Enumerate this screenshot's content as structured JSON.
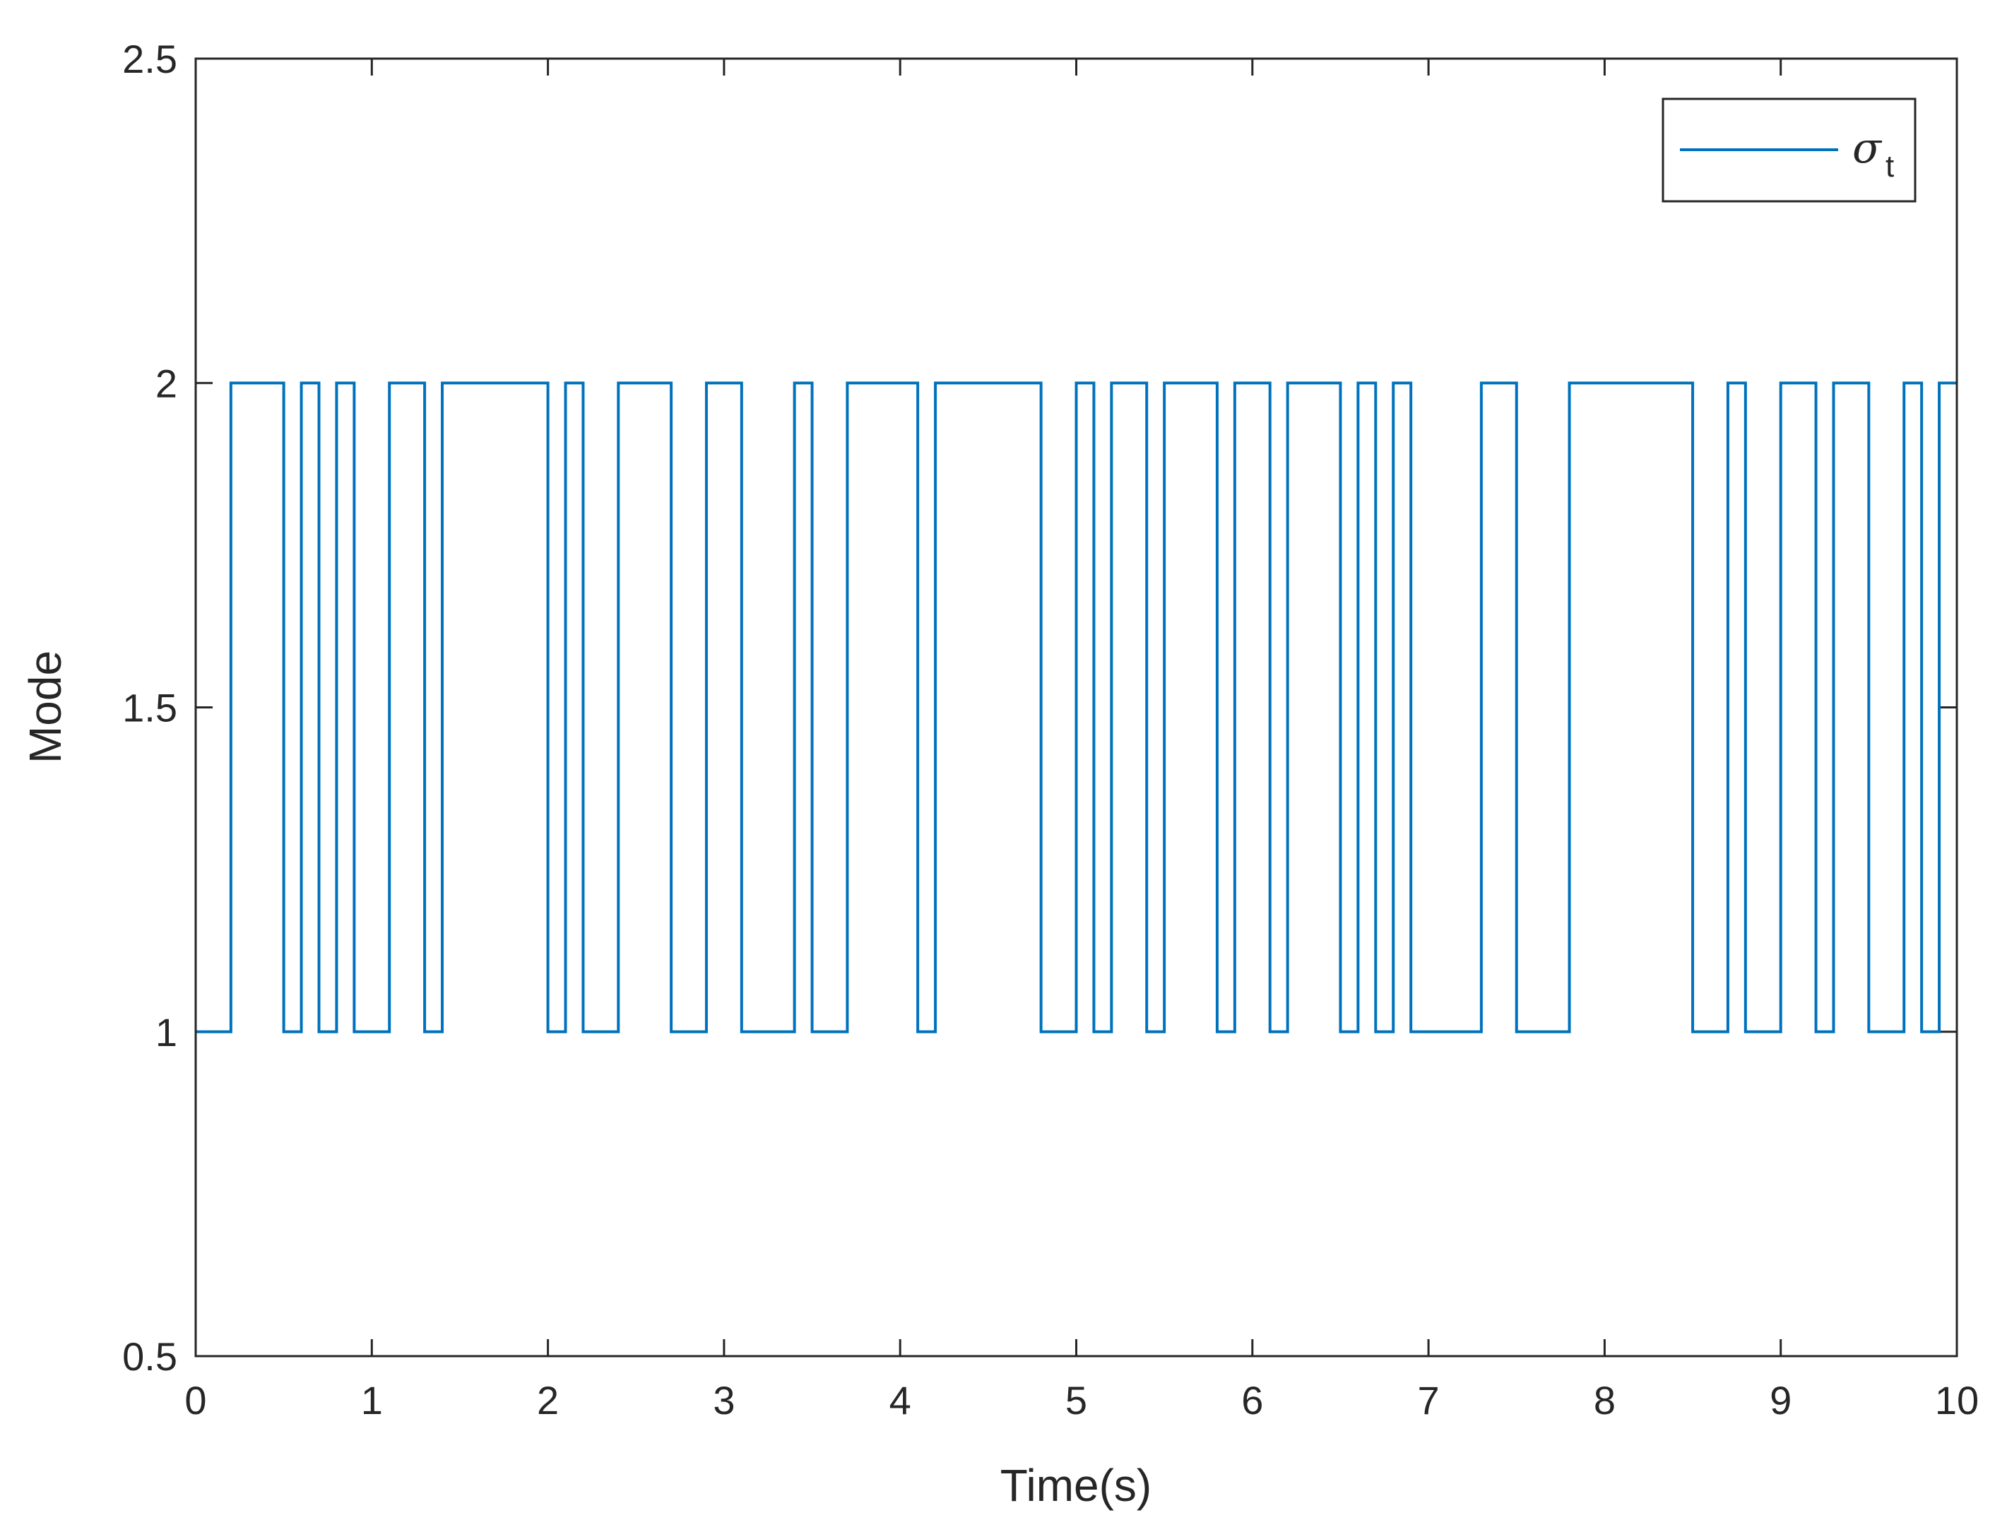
{
  "chart_data": {
    "type": "line",
    "step": true,
    "xlabel": "Time(s)",
    "ylabel": "Mode",
    "xlim": [
      0,
      10
    ],
    "ylim": [
      0.5,
      2.5
    ],
    "x_ticks": [
      0,
      1,
      2,
      3,
      4,
      5,
      6,
      7,
      8,
      9,
      10
    ],
    "y_ticks": [
      0.5,
      1,
      1.5,
      2,
      2.5
    ],
    "x_tick_labels": [
      "0",
      "1",
      "2",
      "3",
      "4",
      "5",
      "6",
      "7",
      "8",
      "9",
      "10"
    ],
    "y_tick_labels": [
      "0.5",
      "1",
      "1.5",
      "2",
      "2.5"
    ],
    "grid": false,
    "legend_position": "top-right",
    "series": [
      {
        "name": "σ",
        "name_subscript": "t",
        "color": "#0072BD",
        "x": [
          0,
          0.2,
          0.5,
          0.6,
          0.7,
          0.8,
          0.9,
          1.1,
          1.3,
          1.4,
          2.0,
          2.1,
          2.2,
          2.4,
          2.7,
          2.9,
          3.1,
          3.4,
          3.5,
          3.7,
          4.1,
          4.2,
          4.8,
          5.0,
          5.1,
          5.2,
          5.4,
          5.5,
          5.8,
          5.9,
          6.1,
          6.2,
          6.5,
          6.6,
          6.7,
          6.8,
          6.9,
          7.3,
          7.5,
          7.8,
          8.5,
          8.7,
          8.8,
          9.0,
          9.2,
          9.3,
          9.5,
          9.7,
          9.8,
          9.9,
          10.0
        ],
        "values": [
          1,
          2,
          1,
          2,
          1,
          2,
          1,
          2,
          1,
          2,
          1,
          2,
          1,
          2,
          1,
          2,
          1,
          2,
          1,
          2,
          1,
          2,
          1,
          2,
          1,
          2,
          1,
          2,
          1,
          2,
          1,
          2,
          1,
          2,
          1,
          2,
          1,
          2,
          1,
          2,
          1,
          2,
          1,
          2,
          1,
          2,
          1,
          2,
          1,
          2,
          2
        ]
      }
    ]
  }
}
